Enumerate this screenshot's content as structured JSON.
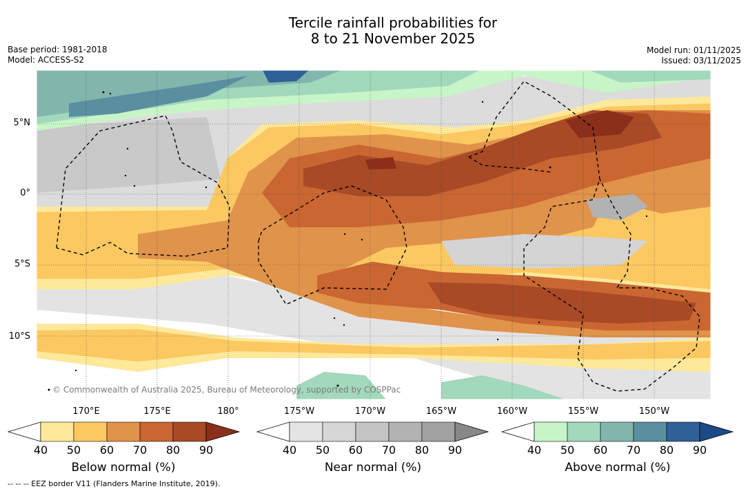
{
  "title": {
    "line1": "Tercile rainfall probabilities for",
    "line2": "8 to 21 November 2025"
  },
  "meta": {
    "base_period": "Base period: 1981-2018",
    "model": "Model: ACCESS-S2",
    "model_run": "Model run: 01/11/2025",
    "issued": "Issued: 03/11/2025"
  },
  "map": {
    "lat_labels": [
      "5°N",
      "0°",
      "5°S",
      "10°S"
    ],
    "lon_labels": [
      "170°E",
      "175°E",
      "180°",
      "175°W",
      "170°W",
      "165°W",
      "160°W",
      "155°W",
      "150°W"
    ],
    "copyright": "© Commonwealth of Australia 2025, Bureau of Meteorology, supported by COSPPac"
  },
  "colorbars": [
    {
      "title": "Below normal (%)",
      "ticks": [
        "40",
        "50",
        "60",
        "70",
        "80",
        "90"
      ],
      "colors": [
        "#ffffff",
        "#fee89a",
        "#fbc862",
        "#e0934a",
        "#c96632",
        "#a84a26",
        "#8b2e1a"
      ]
    },
    {
      "title": "Near normal (%)",
      "ticks": [
        "40",
        "50",
        "60",
        "70",
        "80",
        "90"
      ],
      "colors": [
        "#ffffff",
        "#e4e4e4",
        "#d6d6d6",
        "#c4c4c4",
        "#b2b2b2",
        "#a2a2a2",
        "#888888"
      ]
    },
    {
      "title": "Above normal (%)",
      "ticks": [
        "40",
        "50",
        "60",
        "70",
        "80",
        "90"
      ],
      "colors": [
        "#ffffff",
        "#c8f5c8",
        "#a2d8bb",
        "#82b6ad",
        "#5a8fa0",
        "#2f6098",
        "#1c4a86"
      ]
    }
  ],
  "eez_note": "--  --  -- EEZ border V11 (Flanders Marine Institute, 2019)."
}
